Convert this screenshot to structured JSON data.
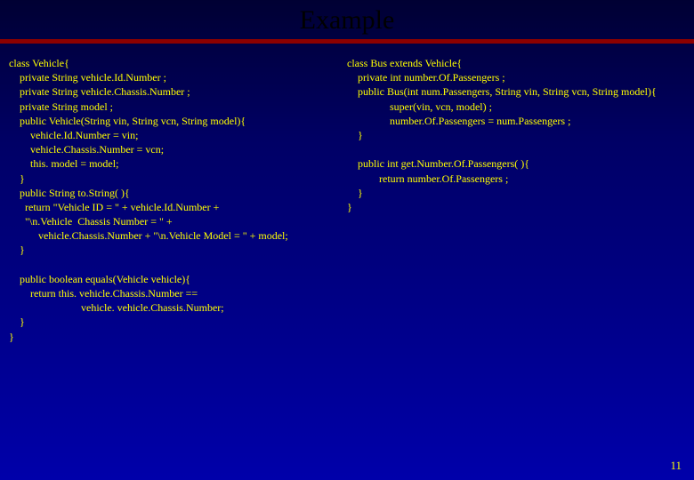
{
  "title": "Example",
  "pageNumber": "11",
  "leftCode": "class Vehicle{\n    private String vehicle.Id.Number ;\n    private String vehicle.Chassis.Number ;\n    private String model ;\n    public Vehicle(String vin, String vcn, String model){\n        vehicle.Id.Number = vin;\n        vehicle.Chassis.Number = vcn;\n        this. model = model;\n    }\n    public String to.String( ){\n      return \"Vehicle ID = \" + vehicle.Id.Number +\n      \"\\n.Vehicle  Chassis Number = \" +\n           vehicle.Chassis.Number + \"\\n.Vehicle Model = \" + model;\n    }\n\n    public boolean equals(Vehicle vehicle){\n        return this. vehicle.Chassis.Number ==\n                           vehicle. vehicle.Chassis.Number;\n    }\n}",
  "rightCode": "class Bus extends Vehicle{\n    private int number.Of.Passengers ;\n    public Bus(int num.Passengers, String vin, String vcn, String model){\n                super(vin, vcn, model) ;\n                number.Of.Passengers = num.Passengers ;\n    }\n\n    public int get.Number.Of.Passengers( ){\n            return number.Of.Passengers ;\n    }\n}",
  "colors": {
    "bgTop": "#000033",
    "bgMid": "#000066",
    "bgBottom": "#0000aa",
    "ruleColor": "#8b0000",
    "titleColor": "#000000",
    "codeColor": "#ffff00"
  },
  "typography": {
    "titleFontSize": 30,
    "codeFontSize": 12,
    "pageNumFontSize": 13
  }
}
